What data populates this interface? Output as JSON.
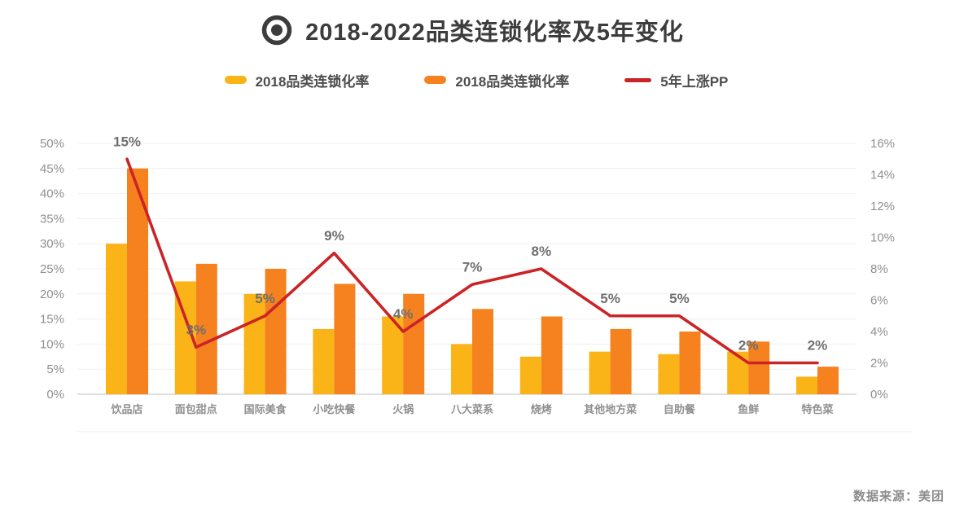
{
  "header": {
    "title": "2018-2022品类连锁化率及5年变化"
  },
  "legend": [
    {
      "label": "2018品类连锁化率",
      "color": "#FBB417",
      "type": "bar"
    },
    {
      "label": "2018品类连锁化率",
      "color": "#F5821F",
      "type": "bar"
    },
    {
      "label": "5年上涨PP",
      "color": "#CB2427",
      "type": "line"
    }
  ],
  "footer": {
    "source": "数据来源：美团"
  },
  "chart_data": {
    "type": "bar",
    "subtype": "grouped bars with overlay line (dual axis)",
    "title": "2018-2022品类连锁化率及5年变化",
    "categories": [
      "饮品店",
      "面包甜点",
      "国际美食",
      "小吃快餐",
      "火锅",
      "八大菜系",
      "烧烤",
      "其他地方菜",
      "自助餐",
      "鱼鲜",
      "特色菜"
    ],
    "series": [
      {
        "name": "2018品类连锁化率",
        "type": "bar",
        "axis": "left",
        "color": "#FBB417",
        "values": [
          30,
          22.5,
          20,
          13,
          15.5,
          10,
          7.5,
          8.5,
          8,
          8.5,
          3.5
        ]
      },
      {
        "name": "2018品类连锁化率",
        "type": "bar",
        "axis": "left",
        "color": "#F5821F",
        "values": [
          45,
          26,
          25,
          22,
          20,
          17,
          15.5,
          13,
          12.5,
          10.5,
          5.5
        ]
      },
      {
        "name": "5年上涨PP",
        "type": "line",
        "axis": "right",
        "color": "#CB2427",
        "values": [
          15,
          3,
          5,
          9,
          4,
          7,
          8,
          5,
          5,
          2,
          2
        ],
        "labels": [
          "15%",
          "3%",
          "5%",
          "9%",
          "4%",
          "7%",
          "8%",
          "5%",
          "5%",
          "2%",
          "2%"
        ]
      }
    ],
    "left_axis": {
      "min": 0,
      "max": 50,
      "step": 5,
      "tick_format": "percent",
      "ticks": [
        "0%",
        "5%",
        "10%",
        "15%",
        "20%",
        "25%",
        "30%",
        "35%",
        "40%",
        "45%",
        "50%"
      ]
    },
    "right_axis": {
      "min": 0,
      "max": 16,
      "step": 2,
      "tick_format": "percent",
      "ticks": [
        "0%",
        "2%",
        "4%",
        "6%",
        "8%",
        "10%",
        "12%",
        "14%",
        "16%"
      ]
    },
    "grid": true,
    "legend_position": "top",
    "data_source": "数据来源：美团"
  }
}
